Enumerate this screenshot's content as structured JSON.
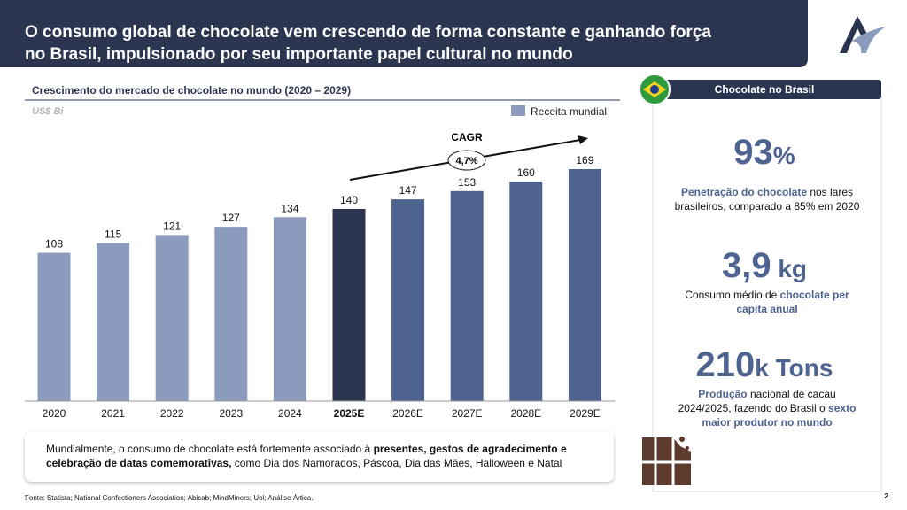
{
  "header": {
    "title_lines": [
      "O consumo global de chocolate vem crescendo de forma constante e ganhando força",
      "no Brasil, impulsionado por seu importante papel cultural no mundo"
    ]
  },
  "chart_data": {
    "type": "bar",
    "title": "Crescimento do mercado de chocolate no mundo (2020 – 2029)",
    "unit": "US$ Bi",
    "categories": [
      "2020",
      "2021",
      "2022",
      "2023",
      "2024",
      "2025E",
      "2026E",
      "2027E",
      "2028E",
      "2029E"
    ],
    "series": [
      {
        "name": "Receita mundial",
        "color": "#8a9bbd",
        "values": [
          108,
          115,
          121,
          127,
          134,
          140,
          147,
          153,
          160,
          169
        ]
      }
    ],
    "bar_colors": [
      "#8a9bbd",
      "#8a9bbd",
      "#8a9bbd",
      "#8a9bbd",
      "#8a9bbd",
      "#2b3550",
      "#4f6390",
      "#4f6390",
      "#4f6390",
      "#4f6390"
    ],
    "highlight_index": 5,
    "annotation": {
      "label": "CAGR",
      "value": "4,7%"
    }
  },
  "panel": {
    "title": "Chocolate no Brasil",
    "stats": [
      {
        "number": "93",
        "unit": "%",
        "lines": [
          [
            {
              "text": "Penetração do chocolate",
              "accent": true
            },
            {
              "text": " nos lares",
              "accent": false
            }
          ],
          [
            {
              "text": "brasileiros, comparado a 85% em 2020",
              "accent": false
            }
          ]
        ]
      },
      {
        "number": "3,9",
        "unit": " kg",
        "lines": [
          [
            {
              "text": "Consumo médio de ",
              "accent": false
            },
            {
              "text": "chocolate per",
              "accent": true
            }
          ],
          [
            {
              "text": "capita anual",
              "accent": true
            }
          ]
        ]
      },
      {
        "number": "210",
        "unit": "k Tons",
        "lines": [
          [
            {
              "text": "Produção",
              "accent": true
            },
            {
              "text": " nacional de cacau",
              "accent": false
            }
          ],
          [
            {
              "text": "2024/2025, fazendo do Brasil o ",
              "accent": false
            },
            {
              "text": "sexto",
              "accent": true
            }
          ],
          [
            {
              "text": "maior produtor no mundo",
              "accent": true
            }
          ]
        ]
      }
    ]
  },
  "note": {
    "lines": [
      [
        {
          "text": "Mundialmente, o consumo de chocolate está fortemente associado à ",
          "bold": false
        },
        {
          "text": "presentes, gestos de agradecimento e",
          "bold": true
        }
      ],
      [
        {
          "text": "celebração de datas comemorativas,",
          "bold": true
        },
        {
          "text": " como Dia dos Namorados, Páscoa, Dia das Mães, Halloween e Natal",
          "bold": false
        }
      ]
    ]
  },
  "footer": {
    "source": "Fonte: Statista; National Confectioners Association; Abicab; MindMiners; Uol; Análise Ártica.",
    "page": "2"
  }
}
